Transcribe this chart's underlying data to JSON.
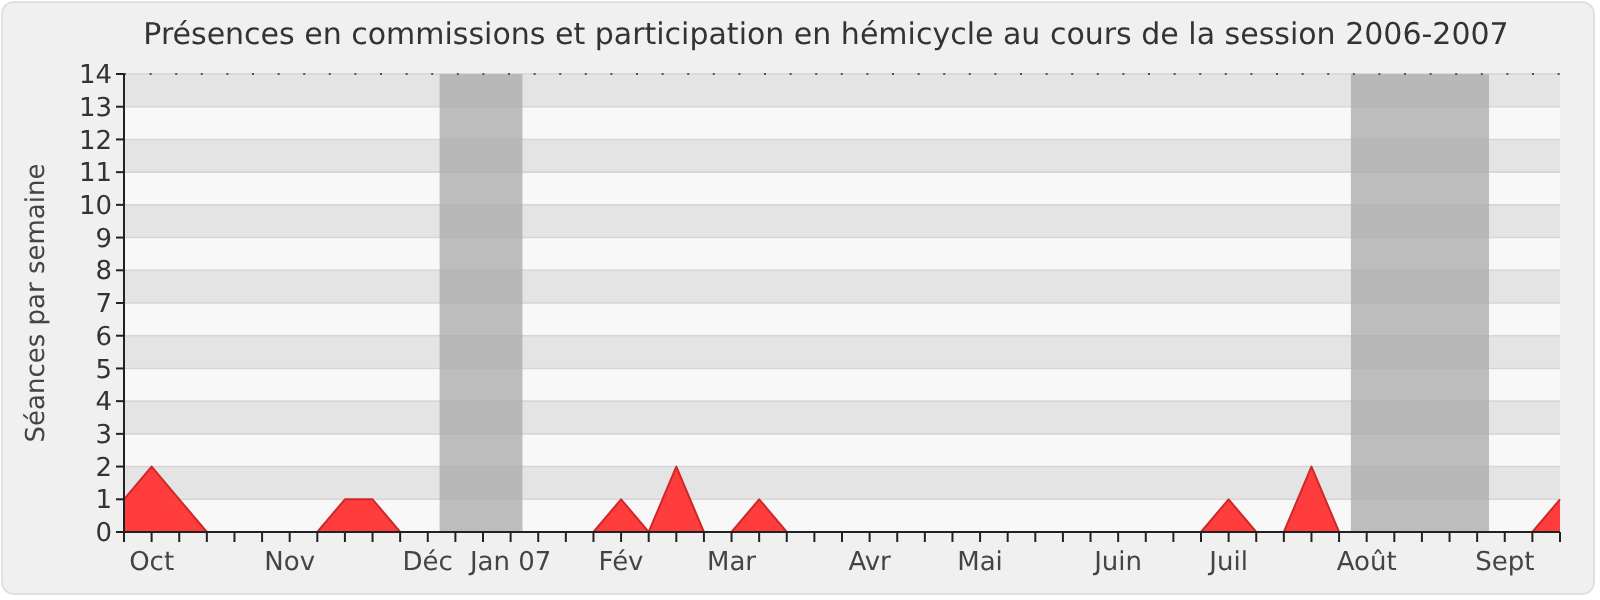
{
  "chart_data": {
    "type": "area",
    "title": "Présences en commissions et participation en hémicycle au cours de la session 2006-2007",
    "ylabel": "Séances par semaine",
    "x": [
      "2006-09-28",
      "2006-10-05",
      "2006-10-12",
      "2006-10-19",
      "2006-10-26",
      "2006-11-02",
      "2006-11-09",
      "2006-11-16",
      "2006-11-23",
      "2006-11-30",
      "2006-12-07",
      "2006-12-14",
      "2006-12-21",
      "2006-12-28",
      "2007-01-04",
      "2007-01-11",
      "2007-01-18",
      "2007-01-25",
      "2007-02-01",
      "2007-02-08",
      "2007-02-15",
      "2007-02-22",
      "2007-03-01",
      "2007-03-08",
      "2007-03-15",
      "2007-03-22",
      "2007-03-29",
      "2007-04-05",
      "2007-04-12",
      "2007-04-19",
      "2007-04-26",
      "2007-05-03",
      "2007-05-10",
      "2007-05-17",
      "2007-05-24",
      "2007-05-31",
      "2007-06-07",
      "2007-06-14",
      "2007-06-21",
      "2007-06-28",
      "2007-07-05",
      "2007-07-12",
      "2007-07-19",
      "2007-07-26",
      "2007-08-02",
      "2007-08-09",
      "2007-08-16",
      "2007-08-23",
      "2007-08-30",
      "2007-09-06",
      "2007-09-13",
      "2007-09-20",
      "2007-09-27"
    ],
    "values": [
      1,
      2,
      1,
      0,
      0,
      0,
      0,
      0,
      1,
      1,
      0,
      0,
      0,
      0,
      0,
      0,
      0,
      0,
      1,
      0,
      2,
      0,
      0,
      1,
      0,
      0,
      0,
      0,
      0,
      0,
      0,
      0,
      0,
      0,
      0,
      0,
      0,
      0,
      0,
      0,
      1,
      0,
      0,
      2,
      0,
      0,
      0,
      0,
      0,
      0,
      0,
      0,
      1
    ],
    "color": "#ff3333",
    "xlim": [
      "2006-09-28",
      "2007-09-27"
    ],
    "xticks": [
      {
        "value": "2006-09-28",
        "label": null
      },
      {
        "value": "2006-10-05",
        "label": "Oct"
      },
      {
        "value": "2006-10-12",
        "label": null
      },
      {
        "value": "2006-10-19",
        "label": null
      },
      {
        "value": "2006-10-26",
        "label": null
      },
      {
        "value": "2006-11-02",
        "label": null
      },
      {
        "value": "2006-11-09",
        "label": "Nov"
      },
      {
        "value": "2006-11-16",
        "label": null
      },
      {
        "value": "2006-11-23",
        "label": null
      },
      {
        "value": "2006-11-30",
        "label": null
      },
      {
        "value": "2006-12-07",
        "label": null
      },
      {
        "value": "2006-12-14",
        "label": "Déc"
      },
      {
        "value": "2006-12-21",
        "label": null
      },
      {
        "value": "2006-12-28",
        "label": null
      },
      {
        "value": "2007-01-04",
        "label": "Jan 07"
      },
      {
        "value": "2007-01-11",
        "label": null
      },
      {
        "value": "2007-01-18",
        "label": null
      },
      {
        "value": "2007-01-25",
        "label": null
      },
      {
        "value": "2007-02-01",
        "label": "Fév"
      },
      {
        "value": "2007-02-08",
        "label": null
      },
      {
        "value": "2007-02-15",
        "label": null
      },
      {
        "value": "2007-02-22",
        "label": null
      },
      {
        "value": "2007-03-01",
        "label": "Mar"
      },
      {
        "value": "2007-03-08",
        "label": null
      },
      {
        "value": "2007-03-15",
        "label": null
      },
      {
        "value": "2007-03-22",
        "label": null
      },
      {
        "value": "2007-03-29",
        "label": null
      },
      {
        "value": "2007-04-05",
        "label": "Avr"
      },
      {
        "value": "2007-04-12",
        "label": null
      },
      {
        "value": "2007-04-19",
        "label": null
      },
      {
        "value": "2007-04-26",
        "label": null
      },
      {
        "value": "2007-05-03",
        "label": "Mai"
      },
      {
        "value": "2007-05-10",
        "label": null
      },
      {
        "value": "2007-05-17",
        "label": null
      },
      {
        "value": "2007-05-24",
        "label": null
      },
      {
        "value": "2007-05-31",
        "label": null
      },
      {
        "value": "2007-06-07",
        "label": "Juin"
      },
      {
        "value": "2007-06-14",
        "label": null
      },
      {
        "value": "2007-06-21",
        "label": null
      },
      {
        "value": "2007-06-28",
        "label": null
      },
      {
        "value": "2007-07-05",
        "label": "Juil"
      },
      {
        "value": "2007-07-12",
        "label": null
      },
      {
        "value": "2007-07-19",
        "label": null
      },
      {
        "value": "2007-07-26",
        "label": null
      },
      {
        "value": "2007-08-02",
        "label": null
      },
      {
        "value": "2007-08-09",
        "label": "Août"
      },
      {
        "value": "2007-08-16",
        "label": null
      },
      {
        "value": "2007-08-23",
        "label": null
      },
      {
        "value": "2007-08-30",
        "label": null
      },
      {
        "value": "2007-09-06",
        "label": null
      },
      {
        "value": "2007-09-13",
        "label": "Sept"
      },
      {
        "value": "2007-09-20",
        "label": null
      },
      {
        "value": "2007-09-27",
        "label": null
      }
    ],
    "ylim": [
      0,
      14
    ],
    "yticks": [
      0,
      1,
      2,
      3,
      4,
      5,
      6,
      7,
      8,
      9,
      10,
      11,
      12,
      13,
      14
    ],
    "grid": "y",
    "bands": [
      {
        "axis": "x",
        "from": "2006-12-17",
        "to": "2007-01-07",
        "color": "#aaaaaa"
      },
      {
        "axis": "x",
        "from": "2007-08-05",
        "to": "2007-09-09",
        "color": "#aaaaaa"
      }
    ]
  }
}
